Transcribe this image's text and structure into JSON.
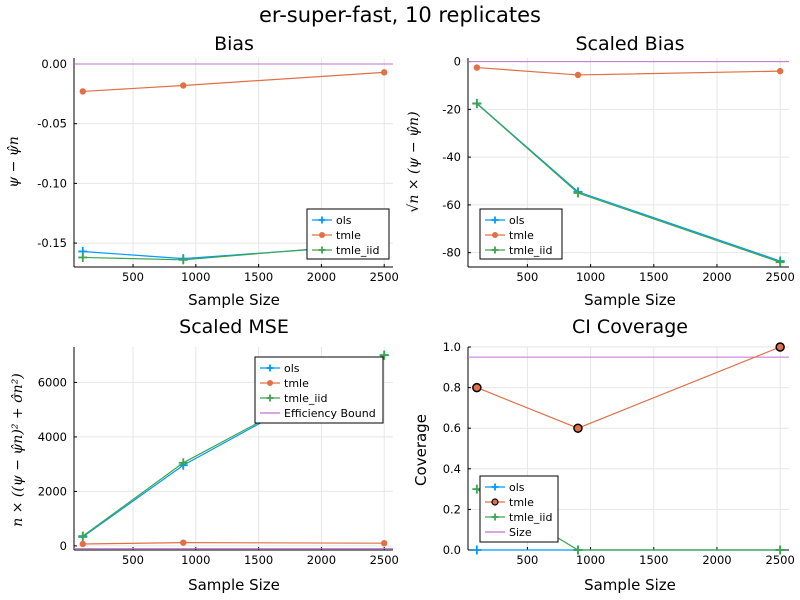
{
  "suptitle": "er-super-fast, 10 replicates",
  "colors": {
    "ols": "#009AFA",
    "tmle": "#E26F46",
    "tmle_iid": "#3EA44E",
    "reference": "#C271D2"
  },
  "chart_data": [
    {
      "type": "line",
      "title": "Bias",
      "xlabel": "Sample Size",
      "ylabel": "ψ − ψ̂n",
      "xlim": [
        30,
        2570
      ],
      "ylim": [
        -0.17,
        0.005
      ],
      "xticks": [
        500,
        1000,
        1500,
        2000,
        2500
      ],
      "xtick_labels": [
        "500",
        "1000",
        "1500",
        "2000",
        "2500"
      ],
      "yticks": [
        0.0,
        -0.05,
        -0.1,
        -0.15
      ],
      "ytick_labels": [
        "0.00",
        "-0.05",
        "-0.10",
        "-0.15"
      ],
      "legend_position": "bottom-right",
      "series": [
        {
          "name": "ols",
          "color": "#009AFA",
          "marker": "cross",
          "x": [
            100,
            900,
            2500
          ],
          "y": [
            -0.157,
            -0.163,
            -0.151
          ]
        },
        {
          "name": "tmle",
          "color": "#E26F46",
          "marker": "circle",
          "x": [
            100,
            900,
            2500
          ],
          "y": [
            -0.023,
            -0.018,
            -0.007
          ]
        },
        {
          "name": "tmle_iid",
          "color": "#3EA44E",
          "marker": "cross",
          "x": [
            100,
            900,
            2500
          ],
          "y": [
            -0.162,
            -0.164,
            -0.15
          ]
        }
      ],
      "hlines": [
        {
          "y": 0,
          "color": "#C271D2"
        }
      ]
    },
    {
      "type": "line",
      "title": "Scaled Bias",
      "xlabel": "Sample Size",
      "ylabel": "√n × (ψ − ψ̂n)",
      "xlim": [
        30,
        2570
      ],
      "ylim": [
        -86,
        1.5
      ],
      "xticks": [
        500,
        1000,
        1500,
        2000,
        2500
      ],
      "xtick_labels": [
        "500",
        "1000",
        "1500",
        "2000",
        "2500"
      ],
      "yticks": [
        0,
        -20,
        -40,
        -60,
        -80
      ],
      "ytick_labels": [
        "0",
        "-20",
        "-40",
        "-60",
        "-80"
      ],
      "legend_position": "bottom-left",
      "series": [
        {
          "name": "ols",
          "color": "#009AFA",
          "marker": "cross",
          "x": [
            100,
            900,
            2500
          ],
          "y": [
            -17.5,
            -54.5,
            -83.5
          ]
        },
        {
          "name": "tmle",
          "color": "#E26F46",
          "marker": "circle",
          "x": [
            100,
            900,
            2500
          ],
          "y": [
            -2.5,
            -5.6,
            -4.0
          ]
        },
        {
          "name": "tmle_iid",
          "color": "#3EA44E",
          "marker": "cross",
          "x": [
            100,
            900,
            2500
          ],
          "y": [
            -17.6,
            -55.0,
            -84.0
          ]
        }
      ],
      "hlines": [
        {
          "y": 0,
          "color": "#C271D2"
        }
      ]
    },
    {
      "type": "line",
      "title": "Scaled MSE",
      "xlabel": "Sample Size",
      "ylabel": "n × ((ψ − ψ̂n)² + σ̂n²)",
      "xlim": [
        30,
        2570
      ],
      "ylim": [
        -150,
        7300
      ],
      "xticks": [
        500,
        1000,
        1500,
        2000,
        2500
      ],
      "xtick_labels": [
        "500",
        "1000",
        "1500",
        "2000",
        "2500"
      ],
      "yticks": [
        0,
        2000,
        4000,
        6000
      ],
      "ytick_labels": [
        "0",
        "2000",
        "4000",
        "6000"
      ],
      "legend_position": "top-right",
      "series": [
        {
          "name": "ols",
          "color": "#009AFA",
          "marker": "cross",
          "x": [
            100,
            900,
            2500
          ],
          "y": [
            330,
            2960,
            7000
          ]
        },
        {
          "name": "tmle",
          "color": "#E26F46",
          "marker": "circle",
          "x": [
            100,
            900,
            2500
          ],
          "y": [
            70,
            120,
            100
          ]
        },
        {
          "name": "tmle_iid",
          "color": "#3EA44E",
          "marker": "cross",
          "x": [
            100,
            900,
            2500
          ],
          "y": [
            360,
            3050,
            7000
          ]
        },
        {
          "name": "Efficiency Bound",
          "color": "#C271D2",
          "marker": "none",
          "legend_only": true
        }
      ],
      "hlines": [
        {
          "y": -100,
          "color": "#C271D2"
        }
      ]
    },
    {
      "type": "line",
      "title": "CI Coverage",
      "xlabel": "Sample Size",
      "ylabel": "Coverage",
      "xlim": [
        30,
        2570
      ],
      "ylim": [
        0,
        1.0
      ],
      "xticks": [
        500,
        1000,
        1500,
        2000,
        2500
      ],
      "xtick_labels": [
        "500",
        "1000",
        "1500",
        "2000",
        "2500"
      ],
      "yticks": [
        0.0,
        0.2,
        0.4,
        0.6,
        0.8,
        1.0
      ],
      "ytick_labels": [
        "0.0",
        "0.2",
        "0.4",
        "0.6",
        "0.8",
        "1.0"
      ],
      "legend_position": "bottom-left",
      "series": [
        {
          "name": "ols",
          "color": "#009AFA",
          "marker": "cross",
          "x": [
            100,
            900,
            2500
          ],
          "y": [
            0.0,
            0.0,
            0.0
          ]
        },
        {
          "name": "tmle",
          "color": "#E26F46",
          "marker": "circle-dark",
          "x": [
            100,
            900,
            2500
          ],
          "y": [
            0.8,
            0.6,
            1.0
          ]
        },
        {
          "name": "tmle_iid",
          "color": "#3EA44E",
          "marker": "cross",
          "x": [
            100,
            900,
            2500
          ],
          "y": [
            0.3,
            0.0,
            0.0
          ]
        },
        {
          "name": "Size",
          "color": "#C271D2",
          "marker": "none",
          "legend_only": true
        }
      ],
      "hlines": [
        {
          "y": 0.95,
          "color": "#C271D2"
        }
      ]
    }
  ]
}
